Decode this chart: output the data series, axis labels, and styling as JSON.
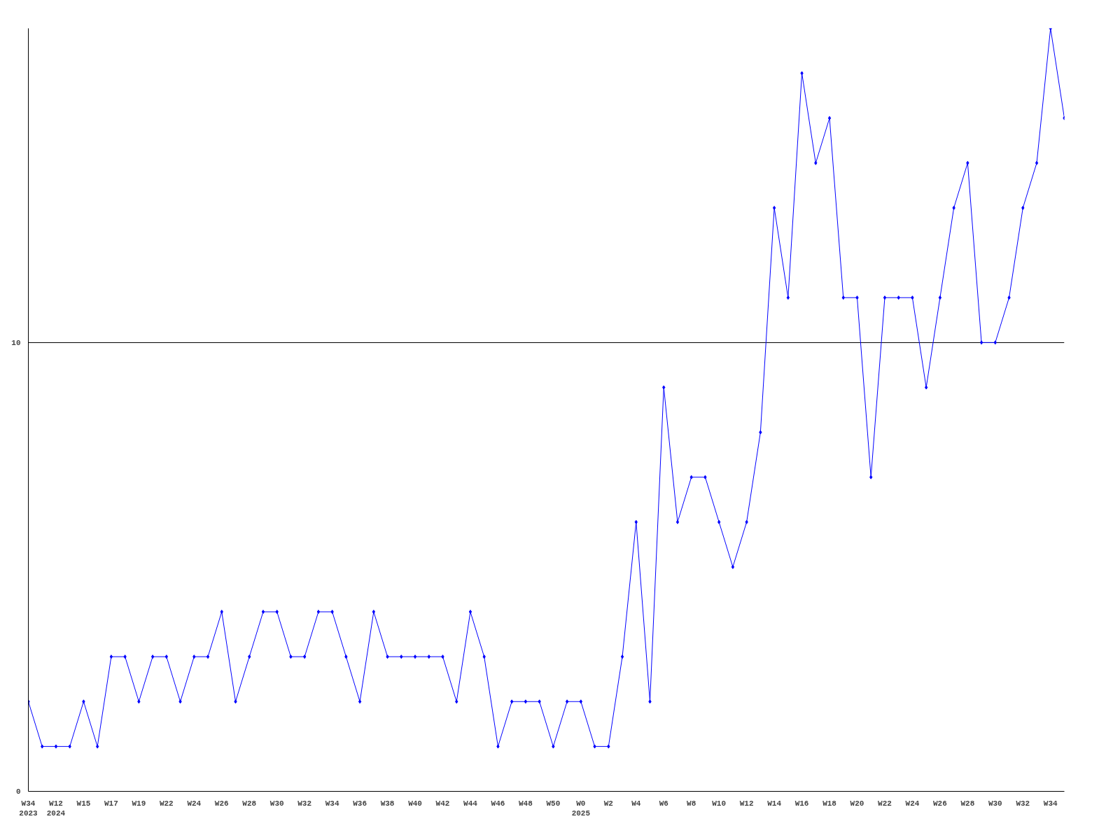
{
  "chart_data": {
    "type": "line",
    "categories": [
      "W34\n2023",
      null,
      "W12\n2024",
      null,
      "W15",
      null,
      "W17",
      null,
      "W19",
      null,
      "W22",
      null,
      "W24",
      null,
      "W26",
      null,
      "W28",
      null,
      "W30",
      null,
      "W32",
      null,
      "W34",
      null,
      "W36",
      null,
      "W38",
      null,
      "W40",
      null,
      "W42",
      null,
      "W44",
      null,
      "W46",
      null,
      "W48",
      null,
      "W50",
      null,
      "W0\n2025",
      null,
      "W2",
      null,
      "W4",
      null,
      "W6",
      null,
      "W8",
      null,
      "W10",
      null,
      "W12",
      null,
      "W14",
      null,
      "W16",
      null,
      "W18",
      null,
      "W20",
      null,
      "W22",
      null,
      "W24",
      null,
      "W26",
      null,
      "W28",
      null,
      "W30",
      null,
      "W32",
      null,
      "W34",
      null
    ],
    "series": [
      {
        "color": "#0000ff",
        "values": [
          2,
          1,
          1,
          1,
          2,
          1,
          3,
          3,
          2,
          3,
          3,
          2,
          3,
          3,
          4,
          2,
          3,
          4,
          4,
          3,
          3,
          4,
          4,
          3,
          2,
          4,
          3,
          3,
          3,
          3,
          3,
          2,
          4,
          3,
          1,
          2,
          2,
          2,
          1,
          2,
          2,
          1,
          1,
          3,
          6,
          2,
          9,
          6,
          7,
          7,
          6,
          5,
          6,
          8,
          13,
          11,
          16,
          14,
          15,
          11,
          11,
          7,
          11,
          11,
          11,
          9,
          11,
          13,
          14,
          10,
          10,
          11,
          13,
          14,
          17,
          15
        ]
      }
    ],
    "ylim": [
      0,
      17
    ],
    "yticks": [
      0,
      10
    ],
    "grid": "y",
    "marker": "diamond",
    "line_style": "solid"
  }
}
